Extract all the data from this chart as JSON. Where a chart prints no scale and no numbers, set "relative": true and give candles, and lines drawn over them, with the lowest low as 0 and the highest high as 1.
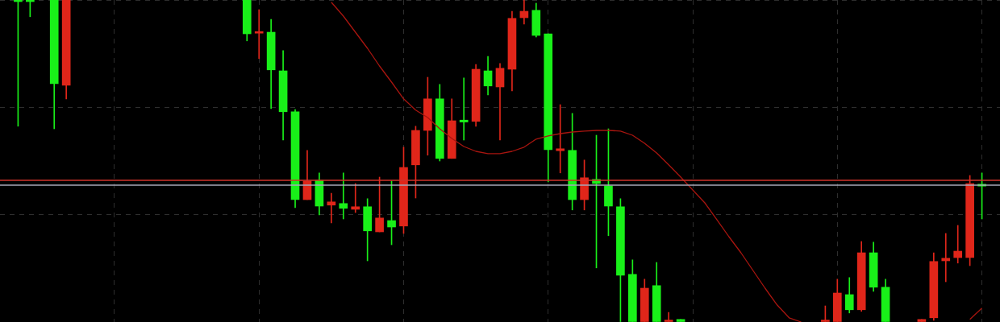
{
  "chart_data": {
    "type": "candlestick",
    "relative": true,
    "grid": true,
    "legend": false,
    "tick_labels": false,
    "categories": [
      null,
      null,
      null,
      null,
      null,
      null,
      null,
      null,
      null,
      null,
      null,
      null,
      null,
      null,
      null,
      null,
      null,
      null,
      null,
      null,
      null,
      null,
      null,
      null,
      null,
      null,
      null,
      null,
      null,
      null,
      null,
      null,
      null,
      null,
      null,
      null,
      null,
      null,
      null,
      null,
      null,
      null,
      null,
      null,
      null,
      null,
      null,
      null,
      null,
      null,
      null,
      null,
      null,
      null,
      null,
      null,
      null,
      null,
      null,
      null,
      null,
      null,
      null,
      null,
      null,
      null,
      null,
      null,
      null,
      null,
      null,
      null,
      null,
      null,
      null,
      null,
      null,
      null,
      null,
      null,
      null,
      null,
      null
    ],
    "ohlc": [
      null,
      [
        1,
        1,
        0.608,
        0.995
      ],
      [
        1,
        1,
        0.948,
        0.995
      ],
      null,
      [
        1,
        1,
        0.6,
        0.74
      ],
      [
        0.735,
        1,
        0.693,
        1
      ],
      null,
      null,
      null,
      null,
      null,
      null,
      null,
      null,
      null,
      null,
      null,
      null,
      null,
      null,
      [
        1,
        1,
        0.873,
        0.895
      ],
      [
        0.897,
        0.97,
        0.818,
        0.902
      ],
      [
        0.9,
        0.94,
        0.663,
        0.783
      ],
      [
        0.78,
        0.843,
        0.565,
        0.653
      ],
      [
        0.653,
        0.66,
        0.355,
        0.38
      ],
      [
        0.38,
        0.533,
        0.38,
        0.438
      ],
      [
        0.44,
        0.463,
        0.333,
        0.36
      ],
      [
        0.363,
        0.4,
        0.308,
        0.373
      ],
      [
        0.368,
        0.463,
        0.32,
        0.353
      ],
      [
        0.35,
        0.43,
        0.34,
        0.358
      ],
      [
        0.358,
        0.383,
        0.19,
        0.283
      ],
      [
        0.28,
        0.45,
        0.28,
        0.323
      ],
      [
        0.315,
        0.438,
        0.24,
        0.295
      ],
      [
        0.298,
        0.543,
        0.275,
        0.48
      ],
      [
        0.488,
        0.608,
        0.385,
        0.595
      ],
      [
        0.595,
        0.76,
        0.518,
        0.693
      ],
      [
        0.693,
        0.738,
        0.5,
        0.508
      ],
      [
        0.508,
        0.693,
        0.508,
        0.625
      ],
      [
        0.627,
        0.758,
        0.565,
        0.621
      ],
      [
        0.623,
        0.8,
        0.608,
        0.785
      ],
      [
        0.78,
        0.825,
        0.705,
        0.733
      ],
      [
        0.73,
        0.803,
        0.565,
        0.788
      ],
      [
        0.785,
        0.965,
        0.718,
        0.943
      ],
      [
        0.945,
        1,
        0.925,
        0.965
      ],
      [
        0.968,
        0.99,
        0.885,
        0.89
      ],
      [
        0.895,
        0.895,
        0.435,
        0.535
      ],
      [
        0.532,
        0.675,
        0.463,
        0.538
      ],
      [
        0.533,
        0.648,
        0.348,
        0.38
      ],
      [
        0.38,
        0.503,
        0.348,
        0.448
      ],
      [
        0.443,
        0.58,
        0.168,
        0.43
      ],
      [
        0.423,
        0.6,
        0.268,
        0.36
      ],
      [
        0.358,
        0.383,
        0,
        0.145
      ],
      [
        0.148,
        0.193,
        0,
        0
      ],
      [
        0,
        0.133,
        0,
        0.105
      ],
      [
        0.113,
        0.185,
        0,
        0
      ],
      [
        0,
        0.03,
        0,
        0.006
      ],
      [
        0.008,
        0.008,
        0,
        0
      ],
      null,
      null,
      null,
      null,
      null,
      null,
      null,
      null,
      null,
      null,
      null,
      [
        0,
        0.05,
        0,
        0.006
      ],
      [
        0,
        0.133,
        0,
        0.09
      ],
      [
        0.085,
        0.138,
        0.028,
        0.038
      ],
      [
        0.038,
        0.25,
        0.033,
        0.215
      ],
      [
        0.215,
        0.248,
        0.095,
        0.108
      ],
      [
        0.108,
        0.133,
        0,
        0
      ],
      null,
      null,
      [
        0,
        0.008,
        0,
        0.008
      ],
      [
        0.013,
        0.215,
        0.005,
        0.188
      ],
      [
        0.19,
        0.275,
        0.125,
        0.198
      ],
      [
        0.2,
        0.3,
        0.183,
        0.22
      ],
      [
        0.2,
        0.455,
        0.175,
        0.43
      ],
      [
        0.428,
        0.463,
        0.32,
        0.422
      ],
      null
    ],
    "colors": [
      null,
      "#19f019",
      "#19f019",
      null,
      "#19f019",
      "#e0261a",
      null,
      null,
      null,
      null,
      null,
      null,
      null,
      null,
      null,
      null,
      null,
      null,
      null,
      null,
      "#19f019",
      "#e0261a",
      "#19f019",
      "#19f019",
      "#19f019",
      "#e0261a",
      "#19f019",
      "#e0261a",
      "#19f019",
      "#e0261a",
      "#19f019",
      "#e0261a",
      "#19f019",
      "#e0261a",
      "#e0261a",
      "#e0261a",
      "#19f019",
      "#e0261a",
      "#19f019",
      "#e0261a",
      "#19f019",
      "#e0261a",
      "#e0261a",
      "#e0261a",
      "#19f019",
      "#19f019",
      "#e0261a",
      "#19f019",
      "#e0261a",
      "#19f019",
      "#19f019",
      "#19f019",
      "#19f019",
      "#e0261a",
      "#19f019",
      "#e0261a",
      "#19f019",
      null,
      null,
      null,
      null,
      null,
      null,
      null,
      null,
      null,
      null,
      null,
      "#e0261a",
      "#e0261a",
      "#19f019",
      "#e0261a",
      "#19f019",
      "#19f019",
      null,
      null,
      "#e0261a",
      "#e0261a",
      "#e0261a",
      "#e0261a",
      "#e0261a",
      "#19f019",
      null
    ],
    "series": [
      {
        "type": "line",
        "color": "#a8150f",
        "values": [
          null,
          null,
          null,
          null,
          null,
          null,
          null,
          null,
          null,
          null,
          null,
          null,
          null,
          null,
          null,
          null,
          null,
          null,
          null,
          null,
          null,
          null,
          null,
          null,
          null,
          null,
          null,
          0.993,
          0.95,
          0.9,
          0.85,
          0.795,
          0.745,
          0.693,
          0.658,
          0.635,
          0.6,
          0.57,
          0.545,
          0.53,
          0.523,
          0.523,
          0.53,
          0.543,
          0.568,
          0.578,
          0.585,
          0.59,
          0.593,
          0.595,
          0.595,
          0.593,
          0.58,
          0.555,
          0.525,
          0.488,
          0.45,
          0.41,
          0.37,
          0.318,
          0.265,
          0.215,
          0.16,
          0.105,
          0.053,
          0.013,
          0,
          null,
          null,
          null,
          null,
          null,
          null,
          null,
          null,
          null,
          null,
          null,
          null,
          null,
          0.008,
          0.043,
          null
        ]
      }
    ],
    "marker": "none",
    "line_style": "solid",
    "ref_lines": [
      {
        "axis": "y",
        "value": 0.44,
        "color": "#d0322a"
      },
      {
        "axis": "y",
        "value": 0.425,
        "color": "#a8a8b8"
      }
    ]
  }
}
